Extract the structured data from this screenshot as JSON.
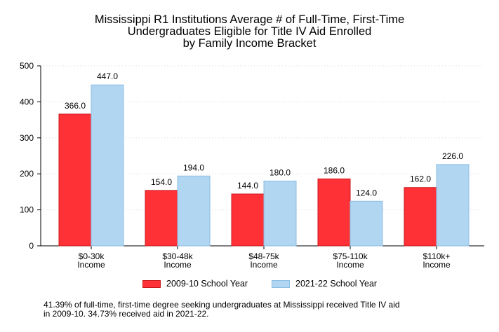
{
  "chart_data": {
    "type": "bar",
    "title_lines": [
      "Mississippi R1 Institutions Average # of Full-Time, First-Time",
      "Undergraduates Eligible for Title IV Aid Enrolled",
      "by Family Income Bracket"
    ],
    "categories": [
      [
        "$0-30k",
        "Income"
      ],
      [
        "$30-48k",
        "Income"
      ],
      [
        "$48-75k",
        "Income"
      ],
      [
        "$75-110k",
        "Income"
      ],
      [
        "$110k+",
        "Income"
      ]
    ],
    "series": [
      {
        "name": "2009-10 School Year",
        "values": [
          366.0,
          154.0,
          144.0,
          186.0,
          162.0
        ],
        "labels": [
          "366.0",
          "154.0",
          "144.0",
          "186.0",
          "162.0"
        ],
        "fill": "#fe3136",
        "stroke": "#c8191e"
      },
      {
        "name": "2021-22 School Year",
        "values": [
          447.0,
          194.0,
          180.0,
          124.0,
          226.0
        ],
        "labels": [
          "447.0",
          "194.0",
          "180.0",
          "124.0",
          "226.0"
        ],
        "fill": "#b0d6f2",
        "stroke": "#8cbde3"
      }
    ],
    "ylim": [
      0,
      500
    ],
    "yticks": [
      0,
      100,
      200,
      300,
      400,
      500
    ],
    "grid": true,
    "legend_position": "bottom"
  },
  "footnote_lines": [
    "41.39% of full-time, first-time degree seeking undergraduates at Mississippi received Title IV aid",
    "in 2009-10. 34.73% received aid in 2021-22."
  ]
}
